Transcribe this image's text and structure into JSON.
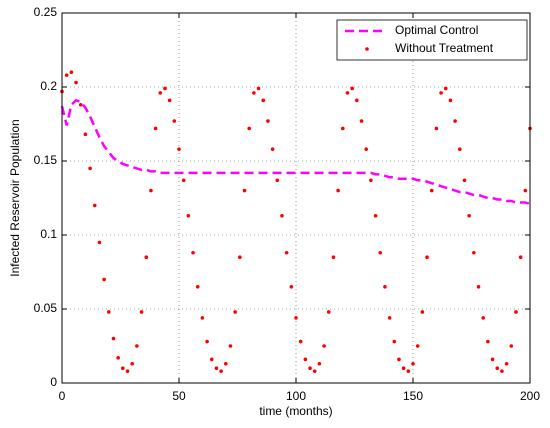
{
  "chart_data": {
    "type": "line",
    "xlabel": "time (months)",
    "ylabel": "Infected Reservoir Population",
    "x": [
      0,
      2,
      4,
      6,
      8,
      10,
      12,
      14,
      16,
      18,
      20,
      22,
      24,
      26,
      28,
      30,
      32,
      34,
      36,
      38,
      40,
      42,
      44,
      46,
      48,
      50,
      52,
      54,
      56,
      58,
      60,
      62,
      64,
      66,
      68,
      70,
      72,
      74,
      76,
      78,
      80,
      82,
      84,
      86,
      88,
      90,
      92,
      94,
      96,
      98,
      100,
      102,
      104,
      106,
      108,
      110,
      112,
      114,
      116,
      118,
      120,
      122,
      124,
      126,
      128,
      130,
      132,
      134,
      136,
      138,
      140,
      142,
      144,
      146,
      148,
      150,
      152,
      154,
      156,
      158,
      160,
      162,
      164,
      166,
      168,
      170,
      172,
      174,
      176,
      178,
      180,
      182,
      184,
      186,
      188,
      190,
      192,
      194,
      196,
      198,
      200
    ],
    "series": [
      {
        "name": "Optimal Control",
        "color": "#ff00ff",
        "style": "dashed",
        "values": [
          0.187,
          0.174,
          0.188,
          0.191,
          0.19,
          0.186,
          0.18,
          0.173,
          0.166,
          0.16,
          0.156,
          0.152,
          0.15,
          0.148,
          0.147,
          0.146,
          0.145,
          0.144,
          0.144,
          0.143,
          0.143,
          0.142,
          0.142,
          0.142,
          0.142,
          0.142,
          0.142,
          0.142,
          0.142,
          0.142,
          0.142,
          0.142,
          0.142,
          0.142,
          0.142,
          0.142,
          0.142,
          0.142,
          0.142,
          0.142,
          0.142,
          0.142,
          0.142,
          0.142,
          0.142,
          0.142,
          0.142,
          0.142,
          0.142,
          0.142,
          0.142,
          0.142,
          0.142,
          0.142,
          0.142,
          0.142,
          0.142,
          0.142,
          0.142,
          0.142,
          0.142,
          0.142,
          0.142,
          0.142,
          0.142,
          0.142,
          0.142,
          0.141,
          0.141,
          0.14,
          0.139,
          0.139,
          0.138,
          0.138,
          0.138,
          0.138,
          0.137,
          0.137,
          0.136,
          0.135,
          0.134,
          0.133,
          0.132,
          0.131,
          0.13,
          0.129,
          0.129,
          0.128,
          0.127,
          0.127,
          0.126,
          0.125,
          0.125,
          0.124,
          0.124,
          0.123,
          0.123,
          0.122,
          0.122,
          0.122,
          0.121
        ]
      },
      {
        "name": "Without Treatment",
        "color": "#ff0000",
        "style": "dots",
        "values": [
          0.197,
          0.208,
          0.21,
          0.203,
          0.188,
          0.168,
          0.145,
          0.12,
          0.095,
          0.07,
          0.048,
          0.03,
          0.017,
          0.01,
          0.008,
          0.013,
          0.025,
          0.048,
          0.085,
          0.13,
          0.172,
          0.196,
          0.199,
          0.191,
          0.177,
          0.158,
          0.137,
          0.113,
          0.088,
          0.065,
          0.044,
          0.028,
          0.016,
          0.01,
          0.008,
          0.013,
          0.025,
          0.048,
          0.085,
          0.13,
          0.172,
          0.196,
          0.199,
          0.191,
          0.177,
          0.158,
          0.137,
          0.113,
          0.088,
          0.065,
          0.044,
          0.028,
          0.016,
          0.01,
          0.008,
          0.013,
          0.025,
          0.048,
          0.085,
          0.13,
          0.172,
          0.196,
          0.199,
          0.191,
          0.177,
          0.158,
          0.137,
          0.113,
          0.088,
          0.065,
          0.044,
          0.028,
          0.016,
          0.01,
          0.008,
          0.013,
          0.025,
          0.048,
          0.085,
          0.13,
          0.172,
          0.196,
          0.199,
          0.191,
          0.177,
          0.158,
          0.137,
          0.113,
          0.088,
          0.065,
          0.044,
          0.028,
          0.016,
          0.01,
          0.008,
          0.013,
          0.025,
          0.048,
          0.085,
          0.13,
          0.172
        ]
      }
    ],
    "xlim": [
      0,
      200
    ],
    "xticks": [
      0,
      50,
      100,
      150,
      200
    ],
    "ylim": [
      0,
      0.25
    ],
    "yticks": [
      0,
      0.05,
      0.1,
      0.15,
      0.2,
      0.25
    ],
    "grid": true,
    "legend": "upper right"
  }
}
